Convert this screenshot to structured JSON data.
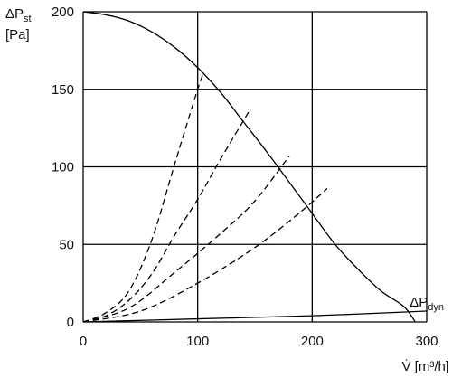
{
  "chart_data": {
    "type": "line",
    "title": "",
    "xlabel": "V̇ [m³/h]",
    "ylabel_main": "ΔP",
    "ylabel_sub": "st",
    "ylabel_unit": "[Pa]",
    "xlim": [
      0,
      300
    ],
    "ylim": [
      0,
      200
    ],
    "x_ticks": [
      0,
      100,
      200,
      300
    ],
    "y_ticks": [
      0,
      50,
      100,
      150,
      200
    ],
    "grid": true,
    "legend": "none",
    "series": [
      {
        "style": "solid",
        "x": [
          0,
          20,
          40,
          60,
          80,
          100,
          120,
          140,
          160,
          180,
          200,
          220,
          240,
          260,
          280,
          290
        ],
        "y": [
          200,
          198,
          194,
          187,
          177,
          164,
          148,
          129,
          110,
          90,
          70,
          50,
          34,
          20,
          10,
          0
        ]
      },
      {
        "style": "dashed",
        "x": [
          0,
          20,
          40,
          60,
          80,
          100,
          105
        ],
        "y": [
          0,
          6,
          20,
          53,
          102,
          150,
          160
        ]
      },
      {
        "style": "dashed",
        "x": [
          0,
          20,
          40,
          60,
          80,
          100,
          120,
          145
        ],
        "y": [
          0,
          4,
          14,
          31,
          56,
          79,
          105,
          136
        ]
      },
      {
        "style": "dashed",
        "x": [
          0,
          40,
          80,
          120,
          150,
          180
        ],
        "y": [
          0,
          9,
          32,
          57,
          78,
          107
        ]
      },
      {
        "style": "dashed",
        "x": [
          0,
          50,
          100,
          150,
          190,
          213
        ],
        "y": [
          0,
          7,
          25,
          48,
          71,
          86
        ]
      },
      {
        "style": "solid",
        "x": [
          0,
          100,
          200,
          300
        ],
        "y": [
          0,
          2,
          4,
          7
        ]
      }
    ],
    "annotations": [
      {
        "main": "ΔP",
        "sub": "dyn",
        "x": 222,
        "y": 7
      }
    ]
  }
}
